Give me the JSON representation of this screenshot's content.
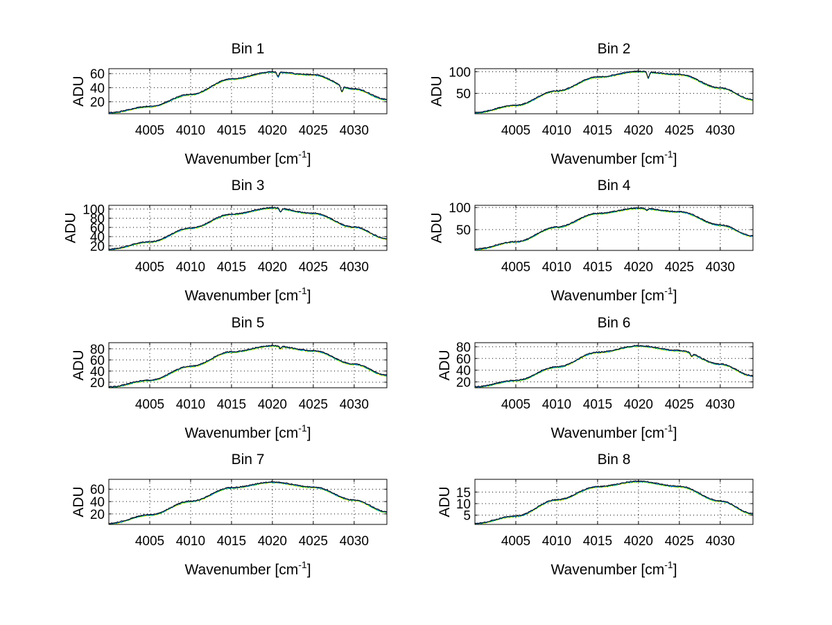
{
  "figure": {
    "background": "#ffffff",
    "series_colors": [
      "#ffff00",
      "#00cc66",
      "#0066ff",
      "#000000"
    ]
  },
  "chart_data": [
    {
      "type": "line",
      "title": "Bin 1",
      "xlabel": "Wavenumber [cm",
      "xlabel_sup": "-1",
      "xlabel_close": "]",
      "ylabel": "ADU",
      "xlim": [
        4000,
        4034
      ],
      "ylim": [
        3,
        67
      ],
      "xticks": [
        4005,
        4010,
        4015,
        4020,
        4025,
        4030
      ],
      "yticks": [
        20,
        40,
        60
      ],
      "grid": true,
      "profile": [
        [
          4000,
          4
        ],
        [
          4005,
          13
        ],
        [
          4010,
          30
        ],
        [
          4015,
          52
        ],
        [
          4020,
          62
        ],
        [
          4025,
          58
        ],
        [
          4030,
          38
        ],
        [
          4034,
          23
        ]
      ],
      "dips": [
        [
          4020.7,
          7
        ],
        [
          4028.5,
          8
        ]
      ]
    },
    {
      "type": "line",
      "title": "Bin 2",
      "xlabel": "Wavenumber [cm",
      "xlabel_sup": "-1",
      "xlabel_close": "]",
      "ylabel": "ADU",
      "xlim": [
        4000,
        4034
      ],
      "ylim": [
        3,
        107
      ],
      "xticks": [
        4005,
        4010,
        4015,
        4020,
        4025,
        4030
      ],
      "yticks": [
        50,
        100
      ],
      "grid": true,
      "profile": [
        [
          4000,
          5
        ],
        [
          4005,
          22
        ],
        [
          4010,
          55
        ],
        [
          4015,
          87
        ],
        [
          4020,
          100
        ],
        [
          4025,
          93
        ],
        [
          4030,
          62
        ],
        [
          4034,
          35
        ]
      ],
      "dips": [
        [
          4021.2,
          14
        ]
      ]
    },
    {
      "type": "line",
      "title": "Bin 3",
      "xlabel": "Wavenumber [cm",
      "xlabel_sup": "-1",
      "xlabel_close": "]",
      "ylabel": "ADU",
      "xlim": [
        4000,
        4034
      ],
      "ylim": [
        10,
        108
      ],
      "xticks": [
        4005,
        4010,
        4015,
        4020,
        4025,
        4030
      ],
      "yticks": [
        20,
        40,
        60,
        80,
        100
      ],
      "grid": true,
      "profile": [
        [
          4000,
          12
        ],
        [
          4005,
          28
        ],
        [
          4010,
          58
        ],
        [
          4015,
          88
        ],
        [
          4020,
          102
        ],
        [
          4025,
          90
        ],
        [
          4030,
          60
        ],
        [
          4034,
          35
        ]
      ],
      "dips": [
        [
          4021,
          8
        ]
      ]
    },
    {
      "type": "line",
      "title": "Bin 4",
      "xlabel": "Wavenumber [cm",
      "xlabel_sup": "-1",
      "xlabel_close": "]",
      "ylabel": "ADU",
      "xlim": [
        4000,
        4034
      ],
      "ylim": [
        3,
        105
      ],
      "xticks": [
        4005,
        4010,
        4015,
        4020,
        4025,
        4030
      ],
      "yticks": [
        50,
        100
      ],
      "grid": true,
      "profile": [
        [
          4000,
          5
        ],
        [
          4005,
          22
        ],
        [
          4010,
          55
        ],
        [
          4015,
          86
        ],
        [
          4020,
          98
        ],
        [
          4025,
          90
        ],
        [
          4030,
          60
        ],
        [
          4034,
          35
        ]
      ],
      "dips": [
        [
          4021,
          4
        ]
      ]
    },
    {
      "type": "line",
      "title": "Bin 5",
      "xlabel": "Wavenumber [cm",
      "xlabel_sup": "-1",
      "xlabel_close": "]",
      "ylabel": "ADU",
      "xlim": [
        4000,
        4034
      ],
      "ylim": [
        10,
        91
      ],
      "xticks": [
        4005,
        4010,
        4015,
        4020,
        4025,
        4030
      ],
      "yticks": [
        20,
        40,
        60,
        80
      ],
      "grid": true,
      "profile": [
        [
          4000,
          11
        ],
        [
          4005,
          23
        ],
        [
          4010,
          48
        ],
        [
          4015,
          74
        ],
        [
          4020,
          85
        ],
        [
          4025,
          76
        ],
        [
          4030,
          52
        ],
        [
          4034,
          32
        ]
      ],
      "dips": [
        [
          4021,
          4
        ]
      ]
    },
    {
      "type": "line",
      "title": "Bin 6",
      "xlabel": "Wavenumber [cm",
      "xlabel_sup": "-1",
      "xlabel_close": "]",
      "ylabel": "ADU",
      "xlim": [
        4000,
        4034
      ],
      "ylim": [
        10,
        87
      ],
      "xticks": [
        4005,
        4010,
        4015,
        4020,
        4025,
        4030
      ],
      "yticks": [
        20,
        40,
        60,
        80
      ],
      "grid": true,
      "profile": [
        [
          4000,
          11
        ],
        [
          4005,
          22
        ],
        [
          4010,
          45
        ],
        [
          4015,
          70
        ],
        [
          4020,
          81
        ],
        [
          4025,
          73
        ],
        [
          4030,
          50
        ],
        [
          4034,
          30
        ]
      ],
      "dips": [
        [
          4026.5,
          5
        ]
      ]
    },
    {
      "type": "line",
      "title": "Bin 7",
      "xlabel": "Wavenumber [cm",
      "xlabel_sup": "-1",
      "xlabel_close": "]",
      "ylabel": "ADU",
      "xlim": [
        4000,
        4034
      ],
      "ylim": [
        3,
        76
      ],
      "xticks": [
        4005,
        4010,
        4015,
        4020,
        4025,
        4030
      ],
      "yticks": [
        20,
        40,
        60
      ],
      "grid": true,
      "profile": [
        [
          4000,
          4
        ],
        [
          4005,
          18
        ],
        [
          4010,
          40
        ],
        [
          4015,
          62
        ],
        [
          4020,
          71
        ],
        [
          4025,
          63
        ],
        [
          4030,
          42
        ],
        [
          4034,
          23
        ]
      ],
      "dips": []
    },
    {
      "type": "line",
      "title": "Bin 8",
      "xlabel": "Wavenumber [cm",
      "xlabel_sup": "-1",
      "xlabel_close": "]",
      "ylabel": "ADU",
      "xlim": [
        4000,
        4034
      ],
      "ylim": [
        1,
        20.5
      ],
      "xticks": [
        4005,
        4010,
        4015,
        4020,
        4025,
        4030
      ],
      "yticks": [
        5,
        10,
        15
      ],
      "grid": true,
      "profile": [
        [
          4000,
          1.3
        ],
        [
          4005,
          4.5
        ],
        [
          4010,
          11.5
        ],
        [
          4015,
          17.2
        ],
        [
          4020,
          19.5
        ],
        [
          4025,
          17.3
        ],
        [
          4030,
          11
        ],
        [
          4034,
          5.5
        ]
      ],
      "dips": []
    }
  ]
}
